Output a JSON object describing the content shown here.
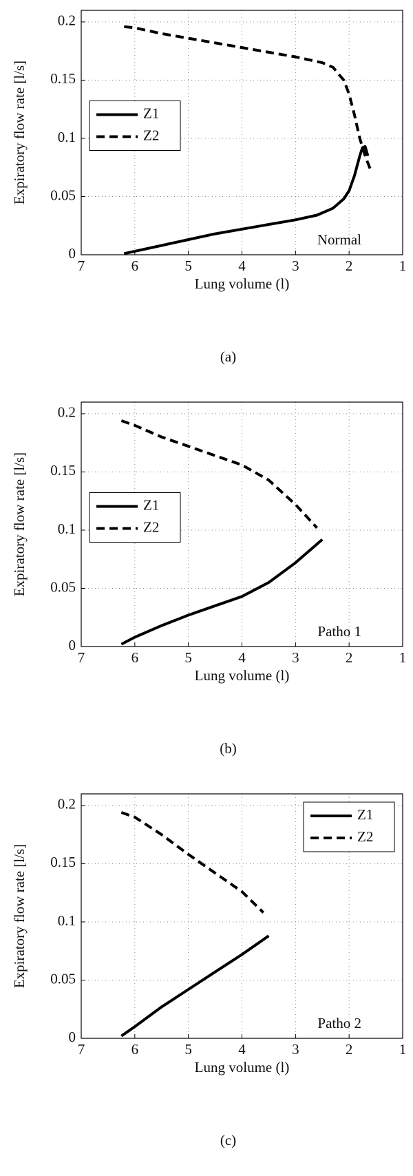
{
  "chart_data": [
    {
      "type": "line",
      "xlabel": "Lung volume (l)",
      "ylabel": "Expiratory flow rate [l/s]",
      "annotation": "Normal",
      "caption": "(a)",
      "xlim": [
        7,
        1
      ],
      "xticks": [
        7,
        6,
        5,
        4,
        3,
        2,
        1
      ],
      "ylim": [
        0,
        0.21
      ],
      "yticks": [
        0,
        0.05,
        0.1,
        0.15,
        0.2
      ],
      "grid": true,
      "legend": "center left",
      "series": [
        {
          "name": "Z1",
          "color": "#000000",
          "linestyle": "solid",
          "x": [
            6.2,
            5.5,
            5,
            4.5,
            4,
            3.5,
            3,
            2.6,
            2.3,
            2.1,
            2.0,
            1.9,
            1.8,
            1.75,
            1.7,
            1.65
          ],
          "values": [
            0.001,
            0.008,
            0.013,
            0.018,
            0.022,
            0.026,
            0.03,
            0.034,
            0.04,
            0.048,
            0.055,
            0.068,
            0.085,
            0.092,
            0.093,
            0.085
          ]
        },
        {
          "name": "Z2",
          "color": "#000000",
          "linestyle": "dashed",
          "x": [
            6.2,
            6,
            5.5,
            5,
            4.5,
            4,
            3.5,
            3,
            2.5,
            2.3,
            2.1,
            2.0,
            1.9,
            1.8,
            1.7,
            1.6
          ],
          "values": [
            0.196,
            0.195,
            0.19,
            0.186,
            0.182,
            0.178,
            0.174,
            0.17,
            0.165,
            0.161,
            0.15,
            0.138,
            0.12,
            0.1,
            0.085,
            0.073
          ]
        }
      ]
    },
    {
      "type": "line",
      "xlabel": "Lung volume (l)",
      "ylabel": "Expiratory flow rate [l/s]",
      "annotation": "Patho 1",
      "caption": "(b)",
      "xlim": [
        7,
        1
      ],
      "xticks": [
        7,
        6,
        5,
        4,
        3,
        2,
        1
      ],
      "ylim": [
        0,
        0.21
      ],
      "yticks": [
        0,
        0.05,
        0.1,
        0.15,
        0.2
      ],
      "grid": true,
      "legend": "center left",
      "series": [
        {
          "name": "Z1",
          "color": "#000000",
          "linestyle": "solid",
          "x": [
            6.25,
            6,
            5.5,
            5,
            4.5,
            4,
            3.5,
            3,
            2.5
          ],
          "values": [
            0.002,
            0.008,
            0.018,
            0.027,
            0.035,
            0.043,
            0.055,
            0.072,
            0.092
          ]
        },
        {
          "name": "Z2",
          "color": "#000000",
          "linestyle": "dashed",
          "x": [
            6.25,
            6,
            5.5,
            5,
            4.5,
            4,
            3.5,
            3,
            2.6
          ],
          "values": [
            0.194,
            0.19,
            0.18,
            0.172,
            0.164,
            0.156,
            0.143,
            0.122,
            0.102
          ]
        }
      ]
    },
    {
      "type": "line",
      "xlabel": "Lung volume (l)",
      "ylabel": "Expiratory flow rate [l/s]",
      "annotation": "Patho 2",
      "caption": "(c)",
      "xlim": [
        7,
        1
      ],
      "xticks": [
        7,
        6,
        5,
        4,
        3,
        2,
        1
      ],
      "ylim": [
        0,
        0.21
      ],
      "yticks": [
        0,
        0.05,
        0.1,
        0.15,
        0.2
      ],
      "grid": true,
      "legend": "upper right",
      "series": [
        {
          "name": "Z1",
          "color": "#000000",
          "linestyle": "solid",
          "x": [
            6.25,
            6,
            5.5,
            5,
            4.5,
            4,
            3.5
          ],
          "values": [
            0.002,
            0.01,
            0.027,
            0.042,
            0.057,
            0.072,
            0.088
          ]
        },
        {
          "name": "Z2",
          "color": "#000000",
          "linestyle": "dashed",
          "x": [
            6.25,
            6,
            5.5,
            5,
            4.5,
            4,
            3.6
          ],
          "values": [
            0.194,
            0.19,
            0.175,
            0.158,
            0.142,
            0.126,
            0.108
          ]
        }
      ]
    }
  ]
}
